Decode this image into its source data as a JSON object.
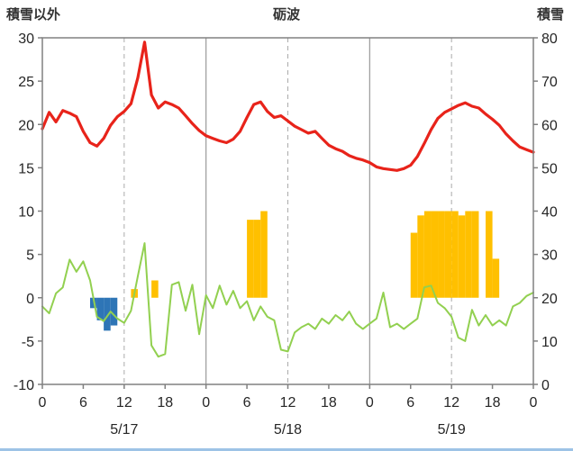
{
  "header": {
    "left_axis_title": "積雪以外",
    "station_title": "砺波",
    "right_axis_title": "積雪"
  },
  "chart_data": {
    "type": "line",
    "title": "砺波",
    "left_axis": {
      "title": "積雪以外",
      "min": -10,
      "max": 30,
      "ticks": [
        30,
        25,
        20,
        15,
        10,
        5,
        0,
        -5,
        -10
      ]
    },
    "right_axis": {
      "title": "積雪",
      "min": 0,
      "max": 80,
      "ticks": [
        80,
        70,
        60,
        50,
        40,
        30,
        20,
        10,
        0
      ]
    },
    "x_axis": {
      "hours_total": 72,
      "tick_step": 6,
      "tick_labels": [
        "0",
        "6",
        "12",
        "18",
        "0",
        "6",
        "12",
        "18",
        "0",
        "6",
        "12",
        "18",
        "0"
      ],
      "day_labels": [
        "5/17",
        "5/18",
        "5/19"
      ],
      "day_label_hours": [
        12,
        36,
        60
      ],
      "solid_gridlines_hours": [
        24,
        48
      ],
      "dashed_gridlines_hours": [
        12,
        36,
        60
      ]
    },
    "grid_color": "#999999",
    "dashed_grid_color": "#ababab",
    "border_color": "#808080",
    "series": [
      {
        "name": "blue-bars",
        "type": "bar",
        "color": "#2e75b6",
        "points": [
          [
            8,
            -1.2
          ],
          [
            9,
            -2.6
          ],
          [
            10,
            -3.8
          ],
          [
            11,
            -3.2
          ]
        ]
      },
      {
        "name": "orange-bars",
        "type": "bar",
        "color": "#ffc000",
        "points": [
          [
            14,
            1.0
          ],
          [
            17,
            2.0
          ],
          [
            31,
            9.0
          ],
          [
            32,
            9.0
          ],
          [
            33,
            10.0
          ],
          [
            55,
            7.5
          ],
          [
            56,
            9.5
          ],
          [
            57,
            10
          ],
          [
            58,
            10
          ],
          [
            59,
            10
          ],
          [
            60,
            10
          ],
          [
            61,
            10
          ],
          [
            62,
            9.5
          ],
          [
            63,
            10
          ],
          [
            64,
            10
          ],
          [
            66,
            10
          ],
          [
            67,
            4.5
          ]
        ]
      },
      {
        "name": "green-line",
        "type": "line",
        "color": "#92d050",
        "width": 2,
        "values": [
          -1.0,
          -1.8,
          0.5,
          1.2,
          4.4,
          3.0,
          4.2,
          2.0,
          -2.2,
          -2.7,
          -1.6,
          -2.4,
          -2.9,
          -1.5,
          2.5,
          6.3,
          -5.5,
          -6.8,
          -6.5,
          1.5,
          1.8,
          -1.5,
          1.5,
          -4.2,
          0.3,
          -1.2,
          1.4,
          -0.8,
          0.8,
          -1.2,
          -0.4,
          -2.6,
          -1.0,
          -2.2,
          -2.6,
          -6.0,
          -6.2,
          -4.0,
          -3.4,
          -3.0,
          -3.6,
          -2.4,
          -3.0,
          -2.0,
          -2.6,
          -1.6,
          -3.0,
          -3.6,
          -3.0,
          -2.4,
          0.6,
          -3.4,
          -3.0,
          -3.6,
          -3.0,
          -2.4,
          1.2,
          1.4,
          -0.6,
          -1.2,
          -2.2,
          -4.6,
          -5.0,
          -1.4,
          -3.2,
          -2.0,
          -3.2,
          -2.6,
          -3.2,
          -1.0,
          -0.6,
          0.2,
          0.6
        ]
      },
      {
        "name": "red-line",
        "type": "line",
        "color": "#e8231a",
        "width": 3.2,
        "values": [
          19.5,
          21.4,
          20.3,
          21.6,
          21.3,
          20.9,
          19.2,
          17.9,
          17.5,
          18.4,
          19.9,
          20.9,
          21.5,
          22.4,
          25.4,
          29.5,
          23.4,
          21.9,
          22.6,
          22.3,
          21.9,
          21.0,
          20.1,
          19.3,
          18.7,
          18.4,
          18.1,
          17.9,
          18.3,
          19.2,
          20.8,
          22.3,
          22.6,
          21.5,
          20.8,
          21.0,
          20.4,
          19.8,
          19.4,
          19.0,
          19.2,
          18.4,
          17.6,
          17.2,
          16.9,
          16.4,
          16.1,
          15.9,
          15.6,
          15.1,
          14.9,
          14.8,
          14.7,
          14.9,
          15.3,
          16.3,
          17.8,
          19.4,
          20.7,
          21.4,
          21.8,
          22.2,
          22.5,
          22.1,
          21.9,
          21.2,
          20.6,
          19.9,
          18.9,
          18.1,
          17.4,
          17.1,
          16.8
        ]
      }
    ]
  }
}
